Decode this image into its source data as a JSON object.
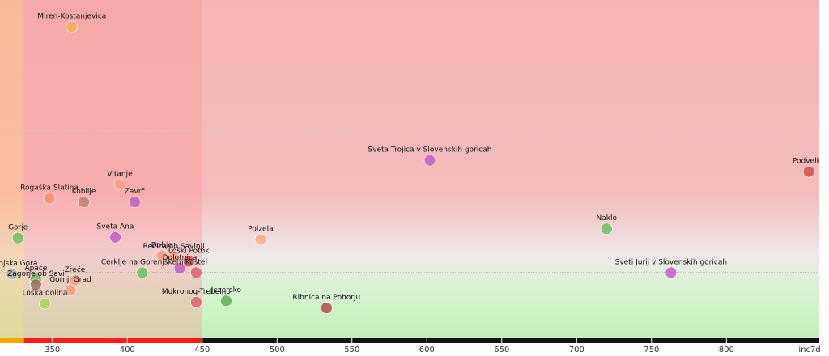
{
  "chart_data": {
    "type": "scatter",
    "x_label": "inc7d",
    "xlim": [
      315,
      862
    ],
    "xticks": [
      350,
      400,
      450,
      500,
      550,
      600,
      650,
      700,
      750,
      800
    ],
    "ylim": [
      0.07,
      4.86
    ],
    "yticks": [
      1,
      2,
      3,
      4
    ],
    "grid": true,
    "x_zones": [
      {
        "from": 315,
        "to": 331,
        "color": "#f5a800",
        "tint": "rgba(255,190,120,0.45)"
      },
      {
        "from": 331,
        "to": 450,
        "color": "#ff1a1a",
        "tint": "rgba(255,150,150,0.35)"
      },
      {
        "from": 450,
        "to": 862,
        "color": "#111111",
        "tint": "rgba(0,0,0,0)"
      }
    ],
    "points": [
      {
        "name": "Miren-Kostanjevica",
        "x": 363,
        "y": 4.48,
        "color": "#f0b060"
      },
      {
        "name": "Sveta Trojica v Slovenskih goricah",
        "x": 602,
        "y": 2.59,
        "color": "#c060c0"
      },
      {
        "name": "Podvelka",
        "x": 855,
        "y": 2.43,
        "color": "#d05050"
      },
      {
        "name": "Vitanje",
        "x": 395,
        "y": 2.25,
        "color": "#f5a080"
      },
      {
        "name": "Rogaška Slatina",
        "x": 348,
        "y": 2.05,
        "color": "#f59070"
      },
      {
        "name": "Kobilje",
        "x": 371,
        "y": 2.0,
        "color": "#c08070"
      },
      {
        "name": "Zavrč",
        "x": 405,
        "y": 2.0,
        "color": "#c060c0"
      },
      {
        "name": "Gorje",
        "x": 327,
        "y": 1.49,
        "color": "#70c060"
      },
      {
        "name": "Sveta Ana",
        "x": 392,
        "y": 1.5,
        "color": "#c060c0"
      },
      {
        "name": "Polzela",
        "x": 489,
        "y": 1.47,
        "color": "#f5b090"
      },
      {
        "name": "Naklo",
        "x": 720,
        "y": 1.62,
        "color": "#70c060"
      },
      {
        "name": "Dobje",
        "x": 423,
        "y": 1.24,
        "color": "#f5a080"
      },
      {
        "name": "Rečica ob Savinji",
        "x": 431,
        "y": 1.22,
        "color": "#f5a080"
      },
      {
        "name": "Loški Potok",
        "x": 441,
        "y": 1.16,
        "color": "#d05050"
      },
      {
        "name": "Dolotnica",
        "x": 435,
        "y": 1.06,
        "color": "#c060c0"
      },
      {
        "name": "Kostel",
        "x": 446,
        "y": 1.0,
        "color": "#e06070"
      },
      {
        "name": "Cerklje na Gorenjskem",
        "x": 410,
        "y": 1.0,
        "color": "#70c060"
      },
      {
        "name": "Jezersko",
        "x": 466,
        "y": 0.6,
        "color": "#60b050"
      },
      {
        "name": "Mokronog-Trebelno",
        "x": 446,
        "y": 0.58,
        "color": "#e06070"
      },
      {
        "name": "Ribnica na Pohorju",
        "x": 533,
        "y": 0.5,
        "color": "#b05050"
      },
      {
        "name": "Sveti Jurij v Slovenskih goricah",
        "x": 763,
        "y": 1.0,
        "color": "#c060c0"
      },
      {
        "name": "Kranjska Gora",
        "x": 323,
        "y": 0.98,
        "color": "#a8b0a8"
      },
      {
        "name": "Apače",
        "x": 339,
        "y": 0.91,
        "color": "#60b050"
      },
      {
        "name": "Zagorje ob Savi",
        "x": 339,
        "y": 0.83,
        "color": "#a07060"
      },
      {
        "name": "Zreče",
        "x": 365,
        "y": 0.89,
        "color": "#f5a080"
      },
      {
        "name": "Gornji Grad",
        "x": 362,
        "y": 0.75,
        "color": "#f5a080"
      },
      {
        "name": "Loška dolina",
        "x": 345,
        "y": 0.56,
        "color": "#b0d060"
      }
    ]
  }
}
